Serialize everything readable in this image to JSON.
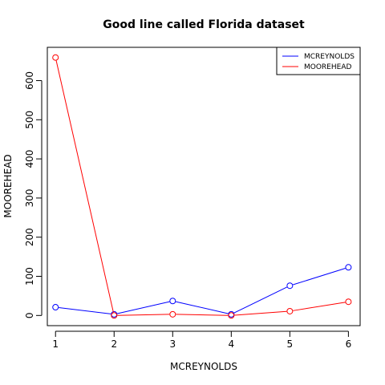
{
  "chart_data": {
    "type": "line",
    "title": "Good line called Florida dataset",
    "xlabel": "MCREYNOLDS",
    "ylabel": "MOOREHEAD",
    "x": [
      1,
      2,
      3,
      4,
      5,
      6
    ],
    "series": [
      {
        "name": "MCREYNOLDS",
        "color": "#0000ff",
        "values": [
          21,
          3,
          37,
          3,
          76,
          123
        ]
      },
      {
        "name": "MOOREHEAD",
        "color": "#ff0000",
        "values": [
          659,
          0,
          3,
          0,
          11,
          35
        ]
      }
    ],
    "xticks": [
      "1",
      "2",
      "3",
      "4",
      "5",
      "6"
    ],
    "yticks": [
      "0",
      "100",
      "200",
      "300",
      "400",
      "500",
      "600"
    ],
    "xlim": [
      0.86,
      6.2
    ],
    "ylim": [
      -26,
      685
    ],
    "grid": false,
    "legend_position": "top-right",
    "marker": "open-circle"
  }
}
